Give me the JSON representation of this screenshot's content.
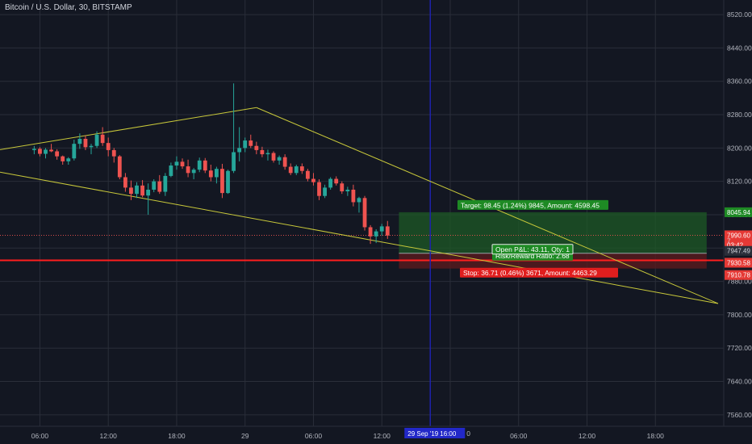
{
  "header": {
    "symbol_title": "Bitcoin / U.S. Dollar, 30, BITSTAMP"
  },
  "colors": {
    "background": "#131722",
    "grid": "#2a2e39",
    "text": "#b2b5be",
    "up": "#26a69a",
    "down": "#ef5350",
    "trendline": "#c8c83a",
    "target_zone": "#1e5a26",
    "stop_zone": "#5a1a1e",
    "stop_line": "#ff1e1e",
    "crosshair": "#1e22aa"
  },
  "chart_data": {
    "type": "candlestick",
    "title": "Bitcoin / U.S. Dollar, 30, BITSTAMP",
    "ylim": [
      7490,
      8555
    ],
    "y_ticks": [
      8520,
      8440,
      8360,
      8280,
      8200,
      8120,
      8040,
      7960,
      7880,
      7800,
      7720,
      7640,
      7560
    ],
    "x_ticks": [
      {
        "t": 1,
        "label": "06:00"
      },
      {
        "t": 13,
        "label": "12:00"
      },
      {
        "t": 25,
        "label": "18:00"
      },
      {
        "t": 37,
        "label": "29"
      },
      {
        "t": 49,
        "label": "06:00"
      },
      {
        "t": 61,
        "label": "12:00"
      },
      {
        "t": 73,
        "label": "30"
      },
      {
        "t": 85,
        "label": "06:00"
      },
      {
        "t": 97,
        "label": "12:00"
      },
      {
        "t": 109,
        "label": "18:00"
      }
    ],
    "x_range": [
      -6,
      121
    ],
    "candles": [
      [
        8195,
        8205,
        8185,
        8198
      ],
      [
        8198,
        8202,
        8180,
        8186
      ],
      [
        8186,
        8200,
        8175,
        8196
      ],
      [
        8196,
        8210,
        8190,
        8192
      ],
      [
        8192,
        8197,
        8172,
        8180
      ],
      [
        8180,
        8182,
        8160,
        8168
      ],
      [
        8168,
        8178,
        8160,
        8175
      ],
      [
        8175,
        8220,
        8170,
        8210
      ],
      [
        8210,
        8235,
        8198,
        8222
      ],
      [
        8222,
        8230,
        8195,
        8202
      ],
      [
        8202,
        8210,
        8185,
        8205
      ],
      [
        8205,
        8240,
        8200,
        8232
      ],
      [
        8232,
        8250,
        8205,
        8212
      ],
      [
        8212,
        8225,
        8180,
        8195
      ],
      [
        8195,
        8200,
        8165,
        8180
      ],
      [
        8180,
        8183,
        8125,
        8130
      ],
      [
        8130,
        8140,
        8095,
        8105
      ],
      [
        8105,
        8122,
        8075,
        8090
      ],
      [
        8090,
        8118,
        8080,
        8110
      ],
      [
        8110,
        8123,
        8082,
        8086
      ],
      [
        8086,
        8115,
        8040,
        8100
      ],
      [
        8100,
        8125,
        8094,
        8120
      ],
      [
        8120,
        8135,
        8090,
        8095
      ],
      [
        8095,
        8140,
        8085,
        8133
      ],
      [
        8133,
        8165,
        8130,
        8158
      ],
      [
        8158,
        8180,
        8148,
        8167
      ],
      [
        8167,
        8175,
        8150,
        8156
      ],
      [
        8156,
        8172,
        8130,
        8140
      ],
      [
        8140,
        8152,
        8125,
        8148
      ],
      [
        8148,
        8177,
        8142,
        8170
      ],
      [
        8170,
        8176,
        8140,
        8146
      ],
      [
        8146,
        8160,
        8120,
        8130
      ],
      [
        8130,
        8155,
        8115,
        8150
      ],
      [
        8150,
        8162,
        8080,
        8092
      ],
      [
        8092,
        8148,
        8090,
        8145
      ],
      [
        8145,
        8355,
        8140,
        8190
      ],
      [
        8190,
        8250,
        8168,
        8200
      ],
      [
        8200,
        8225,
        8190,
        8218
      ],
      [
        8218,
        8232,
        8200,
        8205
      ],
      [
        8205,
        8215,
        8185,
        8195
      ],
      [
        8195,
        8203,
        8178,
        8185
      ],
      [
        8185,
        8196,
        8170,
        8188
      ],
      [
        8188,
        8192,
        8165,
        8170
      ],
      [
        8170,
        8182,
        8160,
        8178
      ],
      [
        8178,
        8185,
        8148,
        8155
      ],
      [
        8155,
        8163,
        8135,
        8140
      ],
      [
        8140,
        8160,
        8135,
        8156
      ],
      [
        8156,
        8163,
        8138,
        8145
      ],
      [
        8145,
        8150,
        8120,
        8126
      ],
      [
        8126,
        8140,
        8110,
        8118
      ],
      [
        8118,
        8125,
        8075,
        8085
      ],
      [
        8085,
        8112,
        8080,
        8105
      ],
      [
        8105,
        8130,
        8100,
        8126
      ],
      [
        8126,
        8132,
        8110,
        8115
      ],
      [
        8115,
        8120,
        8090,
        8096
      ],
      [
        8096,
        8107,
        8085,
        8100
      ],
      [
        8100,
        8112,
        8060,
        8070
      ],
      [
        8070,
        8083,
        8045,
        8080
      ],
      [
        8080,
        8085,
        8002,
        8010
      ],
      [
        8010,
        8015,
        7970,
        7988
      ],
      [
        7988,
        8005,
        7972,
        8000
      ],
      [
        8000,
        8018,
        7990,
        8012
      ],
      [
        8012,
        8025,
        7982,
        7990
      ]
    ],
    "trendlines": [
      {
        "t0": -6,
        "p0": 8196,
        "t1": 39,
        "p1": 8297
      },
      {
        "t0": -6,
        "p0": 8142,
        "t1": 120,
        "p1": 7827
      },
      {
        "t0": 39,
        "p0": 8297,
        "t1": 120,
        "p1": 7827
      }
    ],
    "crosshair_t": 69.5,
    "levels": {
      "current": 7990.6,
      "entry": 7947.49,
      "target": 8045.94,
      "stop": 7910.78,
      "secondary": 7930.58
    },
    "position": {
      "t_start": 64,
      "t_end": 118,
      "target_label": "Target: 98.45 (1.24%) 9845, Amount: 4598.45",
      "stop_label": "Stop: 36.71 (0.46%) 3671, Amount: 4463.29",
      "pnl_label": "Open P&L: 43.11, Qty: 1",
      "ratio_label": "Risk/Reward Ratio: 2.68"
    },
    "price_tags": {
      "target": "8045.94",
      "current": "7990.60",
      "countdown": "03:42",
      "entry": "7947.49",
      "secondary": "7930.58",
      "stop": "7910.78",
      "partial": "7"
    },
    "time_tag": {
      "date": "29 Sep '19",
      "time": "16:00",
      "trailing": "0"
    }
  }
}
